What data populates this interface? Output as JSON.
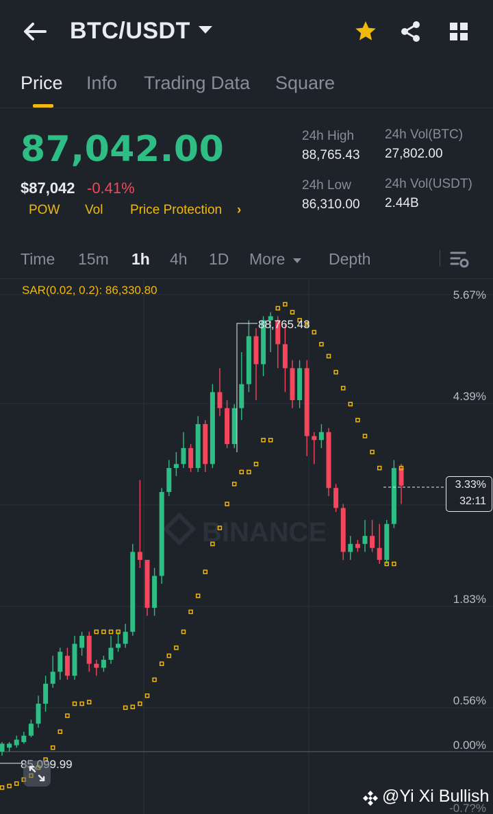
{
  "header": {
    "pair": "BTC/USDT",
    "icons": [
      "back-arrow-icon",
      "caret-down-icon",
      "star-icon",
      "share-icon",
      "grid-icon"
    ],
    "accent": "#f0b90b"
  },
  "tabs": [
    {
      "label": "Price",
      "active": true
    },
    {
      "label": "Info",
      "active": false
    },
    {
      "label": "Trading Data",
      "active": false
    },
    {
      "label": "Square",
      "active": false
    }
  ],
  "ticker": {
    "last_price": "87,042.00",
    "usd_price": "$87,042",
    "change": "-0.41%",
    "tags": [
      "POW",
      "Vol",
      "Price Protection"
    ],
    "up_color": "#2ebd85",
    "down_color": "#f6465d"
  },
  "stats": {
    "high_label": "24h High",
    "high_value": "88,765.43",
    "low_label": "24h Low",
    "low_value": "86,310.00",
    "vol_btc_label": "24h Vol(BTC)",
    "vol_btc_value": "27,802.00",
    "vol_usdt_label": "24h Vol(USDT)",
    "vol_usdt_value": "2.44B"
  },
  "intervals": {
    "items": [
      "Time",
      "15m",
      "1h",
      "4h",
      "1D"
    ],
    "selected": "1h",
    "more": "More",
    "depth": "Depth"
  },
  "chart_data": {
    "type": "candlestick",
    "indicator": "SAR(0.02, 0.2): 86,330.80",
    "y_axis_percent_labels": [
      "5.67%",
      "4.39%",
      "3.33%",
      "1.83%",
      "0.56%",
      "0.00%",
      "-0.7?%"
    ],
    "current_percent": "3.33%",
    "countdown": "32:11",
    "high_marker": "88,765.43",
    "low_marker": "85,099.99",
    "watermark_brand": "BINANCE",
    "candles_pct": [
      [
        0.0,
        0.1,
        -0.05,
        0.12
      ],
      [
        0.05,
        0.1,
        0.0,
        0.12
      ],
      [
        0.08,
        0.15,
        0.05,
        0.2
      ],
      [
        0.12,
        0.2,
        0.1,
        0.25
      ],
      [
        0.2,
        0.35,
        0.18,
        0.4
      ],
      [
        0.35,
        0.6,
        0.3,
        0.7
      ],
      [
        0.6,
        0.85,
        0.5,
        0.95
      ],
      [
        0.85,
        1.0,
        0.8,
        1.2
      ],
      [
        1.0,
        1.25,
        0.9,
        1.3
      ],
      [
        1.2,
        0.95,
        0.9,
        1.3
      ],
      [
        0.95,
        1.35,
        0.9,
        1.45
      ],
      [
        1.3,
        1.45,
        1.2,
        1.5
      ],
      [
        1.45,
        1.1,
        1.0,
        1.5
      ],
      [
        1.1,
        1.05,
        0.95,
        1.15
      ],
      [
        1.05,
        1.15,
        1.0,
        1.2
      ],
      [
        1.15,
        1.3,
        1.1,
        1.45
      ],
      [
        1.3,
        1.35,
        1.25,
        1.5
      ],
      [
        1.35,
        1.5,
        1.3,
        1.6
      ],
      [
        1.5,
        2.5,
        1.45,
        2.6
      ],
      [
        2.5,
        2.4,
        2.3,
        3.4
      ],
      [
        2.4,
        1.8,
        1.7,
        2.4
      ],
      [
        1.8,
        2.2,
        1.7,
        2.3
      ],
      [
        2.2,
        3.25,
        2.1,
        3.3
      ],
      [
        3.25,
        3.55,
        3.2,
        3.65
      ],
      [
        3.55,
        3.6,
        3.45,
        3.75
      ],
      [
        3.6,
        3.8,
        3.55,
        4.0
      ],
      [
        3.8,
        3.55,
        3.5,
        3.85
      ],
      [
        3.55,
        4.1,
        3.5,
        4.2
      ],
      [
        4.1,
        3.6,
        3.5,
        4.15
      ],
      [
        3.6,
        4.5,
        3.55,
        4.6
      ],
      [
        4.5,
        4.3,
        4.2,
        4.8
      ],
      [
        4.3,
        3.85,
        3.8,
        4.4
      ],
      [
        3.85,
        4.3,
        3.8,
        4.35
      ],
      [
        4.3,
        4.6,
        4.15,
        5.0
      ],
      [
        4.6,
        5.2,
        4.5,
        5.4
      ],
      [
        5.2,
        4.85,
        4.4,
        5.3
      ],
      [
        4.85,
        5.4,
        4.7,
        5.45
      ],
      [
        5.4,
        5.45,
        5.0,
        5.5
      ],
      [
        5.4,
        5.1,
        4.8,
        5.45
      ],
      [
        5.1,
        4.8,
        4.5,
        5.35
      ],
      [
        4.8,
        4.4,
        4.3,
        4.9
      ],
      [
        4.4,
        4.8,
        4.3,
        4.9
      ],
      [
        4.8,
        3.95,
        3.7,
        4.9
      ],
      [
        3.95,
        3.9,
        3.6,
        4.0
      ],
      [
        3.9,
        4.0,
        3.8,
        4.1
      ],
      [
        4.0,
        3.3,
        3.2,
        4.05
      ],
      [
        3.3,
        3.05,
        3.0,
        3.35
      ],
      [
        3.05,
        2.5,
        2.4,
        3.1
      ],
      [
        2.5,
        2.6,
        2.4,
        2.7
      ],
      [
        2.6,
        2.55,
        2.5,
        2.65
      ],
      [
        2.6,
        2.7,
        2.5,
        2.9
      ],
      [
        2.7,
        2.55,
        2.5,
        2.9
      ],
      [
        2.55,
        2.4,
        2.35,
        2.85
      ],
      [
        2.4,
        2.85,
        2.35,
        2.9
      ],
      [
        2.85,
        3.55,
        2.8,
        3.65
      ],
      [
        3.55,
        3.33,
        3.1,
        3.6
      ]
    ],
    "sar_pct": [
      -0.45,
      -0.43,
      -0.4,
      -0.35,
      -0.3,
      -0.2,
      -0.1,
      0.05,
      0.25,
      0.45,
      0.6,
      0.6,
      0.62,
      1.5,
      1.5,
      1.5,
      1.5,
      0.55,
      0.56,
      0.6,
      0.7,
      0.9,
      1.1,
      1.2,
      1.3,
      1.5,
      1.75,
      1.95,
      2.25,
      2.6,
      2.8,
      3.1,
      3.35,
      3.5,
      3.5,
      3.6,
      3.9,
      3.9,
      5.55,
      5.6,
      5.5,
      5.4,
      5.35,
      5.25,
      5.1,
      4.95,
      4.75,
      4.55,
      4.35,
      4.15,
      3.95,
      3.75,
      3.55,
      2.35,
      2.35,
      3.55
    ]
  },
  "watermark": {
    "text": "@Yi Xi Bullish"
  }
}
